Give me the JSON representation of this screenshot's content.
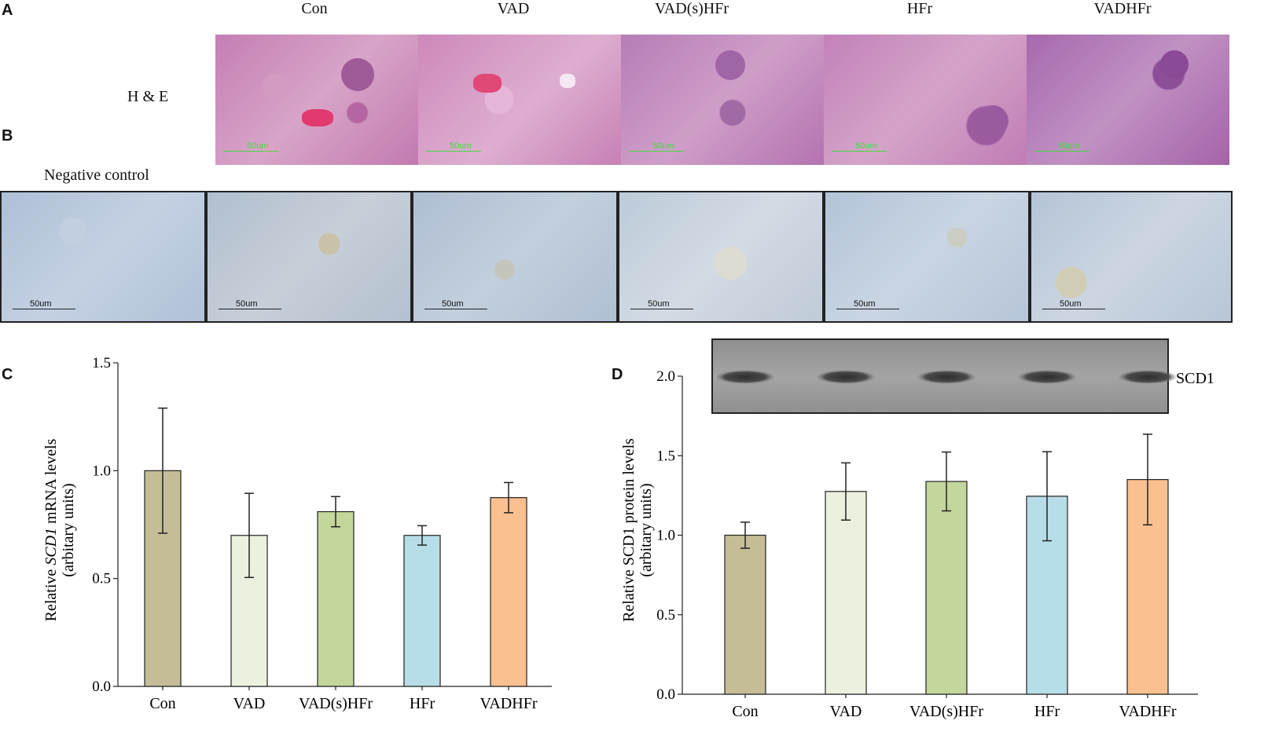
{
  "panel_a": {
    "letter": "A",
    "row_label": "H & E",
    "columns": [
      "Con",
      "VAD",
      "VAD(s)HFr",
      "HFr",
      "VADHFr"
    ],
    "scale_label": "50um"
  },
  "panel_b": {
    "letter": "B",
    "negative_label": "Negative control",
    "scale_label": "50um"
  },
  "chart_data": [
    {
      "panel": "C",
      "type": "bar",
      "categories": [
        "Con",
        "VAD",
        "VAD(s)HFr",
        "HFr",
        "VADHFr"
      ],
      "values": [
        1.0,
        0.7,
        0.81,
        0.7,
        0.875
      ],
      "errors": [
        0.29,
        0.195,
        0.07,
        0.045,
        0.07
      ],
      "colors": [
        "#c4bd97",
        "#ebf1de",
        "#c3d69b",
        "#b7dee8",
        "#fac090"
      ],
      "ylabel_prefix": "Relative ",
      "ylabel_italic": "SCD1",
      "ylabel_suffix": " mRNA levels",
      "ylabel_line2": "(arbitary units)",
      "yticks": [
        "0.0",
        "0.5",
        "1.0",
        "1.5"
      ],
      "ylim": [
        0,
        1.5
      ]
    },
    {
      "panel": "D",
      "type": "bar",
      "categories": [
        "Con",
        "VAD",
        "VAD(s)HFr",
        "HFr",
        "VADHFr"
      ],
      "values": [
        1.0,
        1.275,
        1.338,
        1.245,
        1.35
      ],
      "errors": [
        0.082,
        0.18,
        0.185,
        0.28,
        0.285
      ],
      "colors": [
        "#c4bd97",
        "#ebf1de",
        "#c3d69b",
        "#b7dee8",
        "#fac090"
      ],
      "ylabel": "Relative SCD1 protein levels",
      "ylabel_line2": "(arbitary units)",
      "yticks": [
        "0.0",
        "0.5",
        "1.0",
        "1.5",
        "2.0"
      ],
      "ylim": [
        0,
        2.0
      ],
      "blot_label": "SCD1"
    }
  ]
}
